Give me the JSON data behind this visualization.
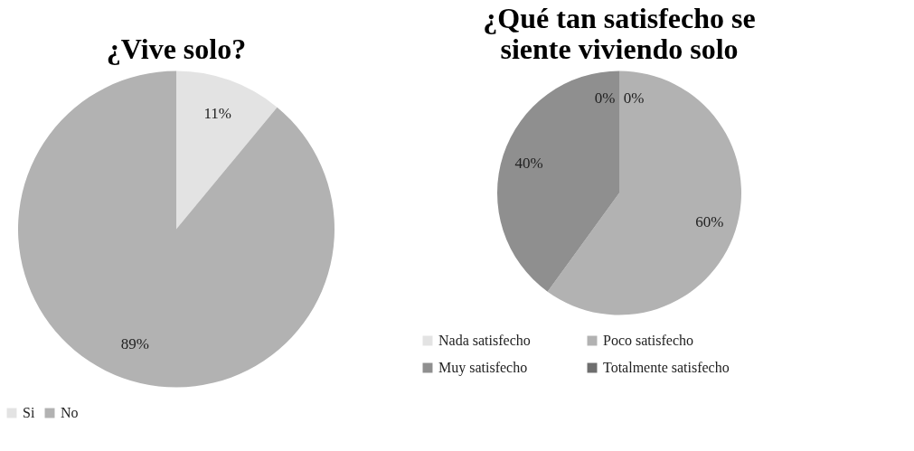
{
  "chart_data": [
    {
      "type": "pie",
      "title": "¿Vive solo?",
      "categories": [
        "Si",
        "No"
      ],
      "values": [
        11,
        89
      ],
      "colors": [
        "#e3e3e3",
        "#b2b2b2"
      ],
      "value_labels": [
        "11%",
        "89%"
      ],
      "legend": "bottom"
    },
    {
      "type": "pie",
      "title": "¿Qué tan satisfecho se siente viviendo solo",
      "categories": [
        "Nada satisfecho",
        "Poco satisfecho",
        "Muy satisfecho",
        "Totalmente satisfecho"
      ],
      "values": [
        0,
        60,
        40,
        0
      ],
      "colors": [
        "#e3e3e3",
        "#b2b2b2",
        "#8f8f8f",
        "#6e6e6e"
      ],
      "value_labels": [
        "0%",
        "60%",
        "40%",
        "0%"
      ],
      "legend": "bottom"
    }
  ]
}
